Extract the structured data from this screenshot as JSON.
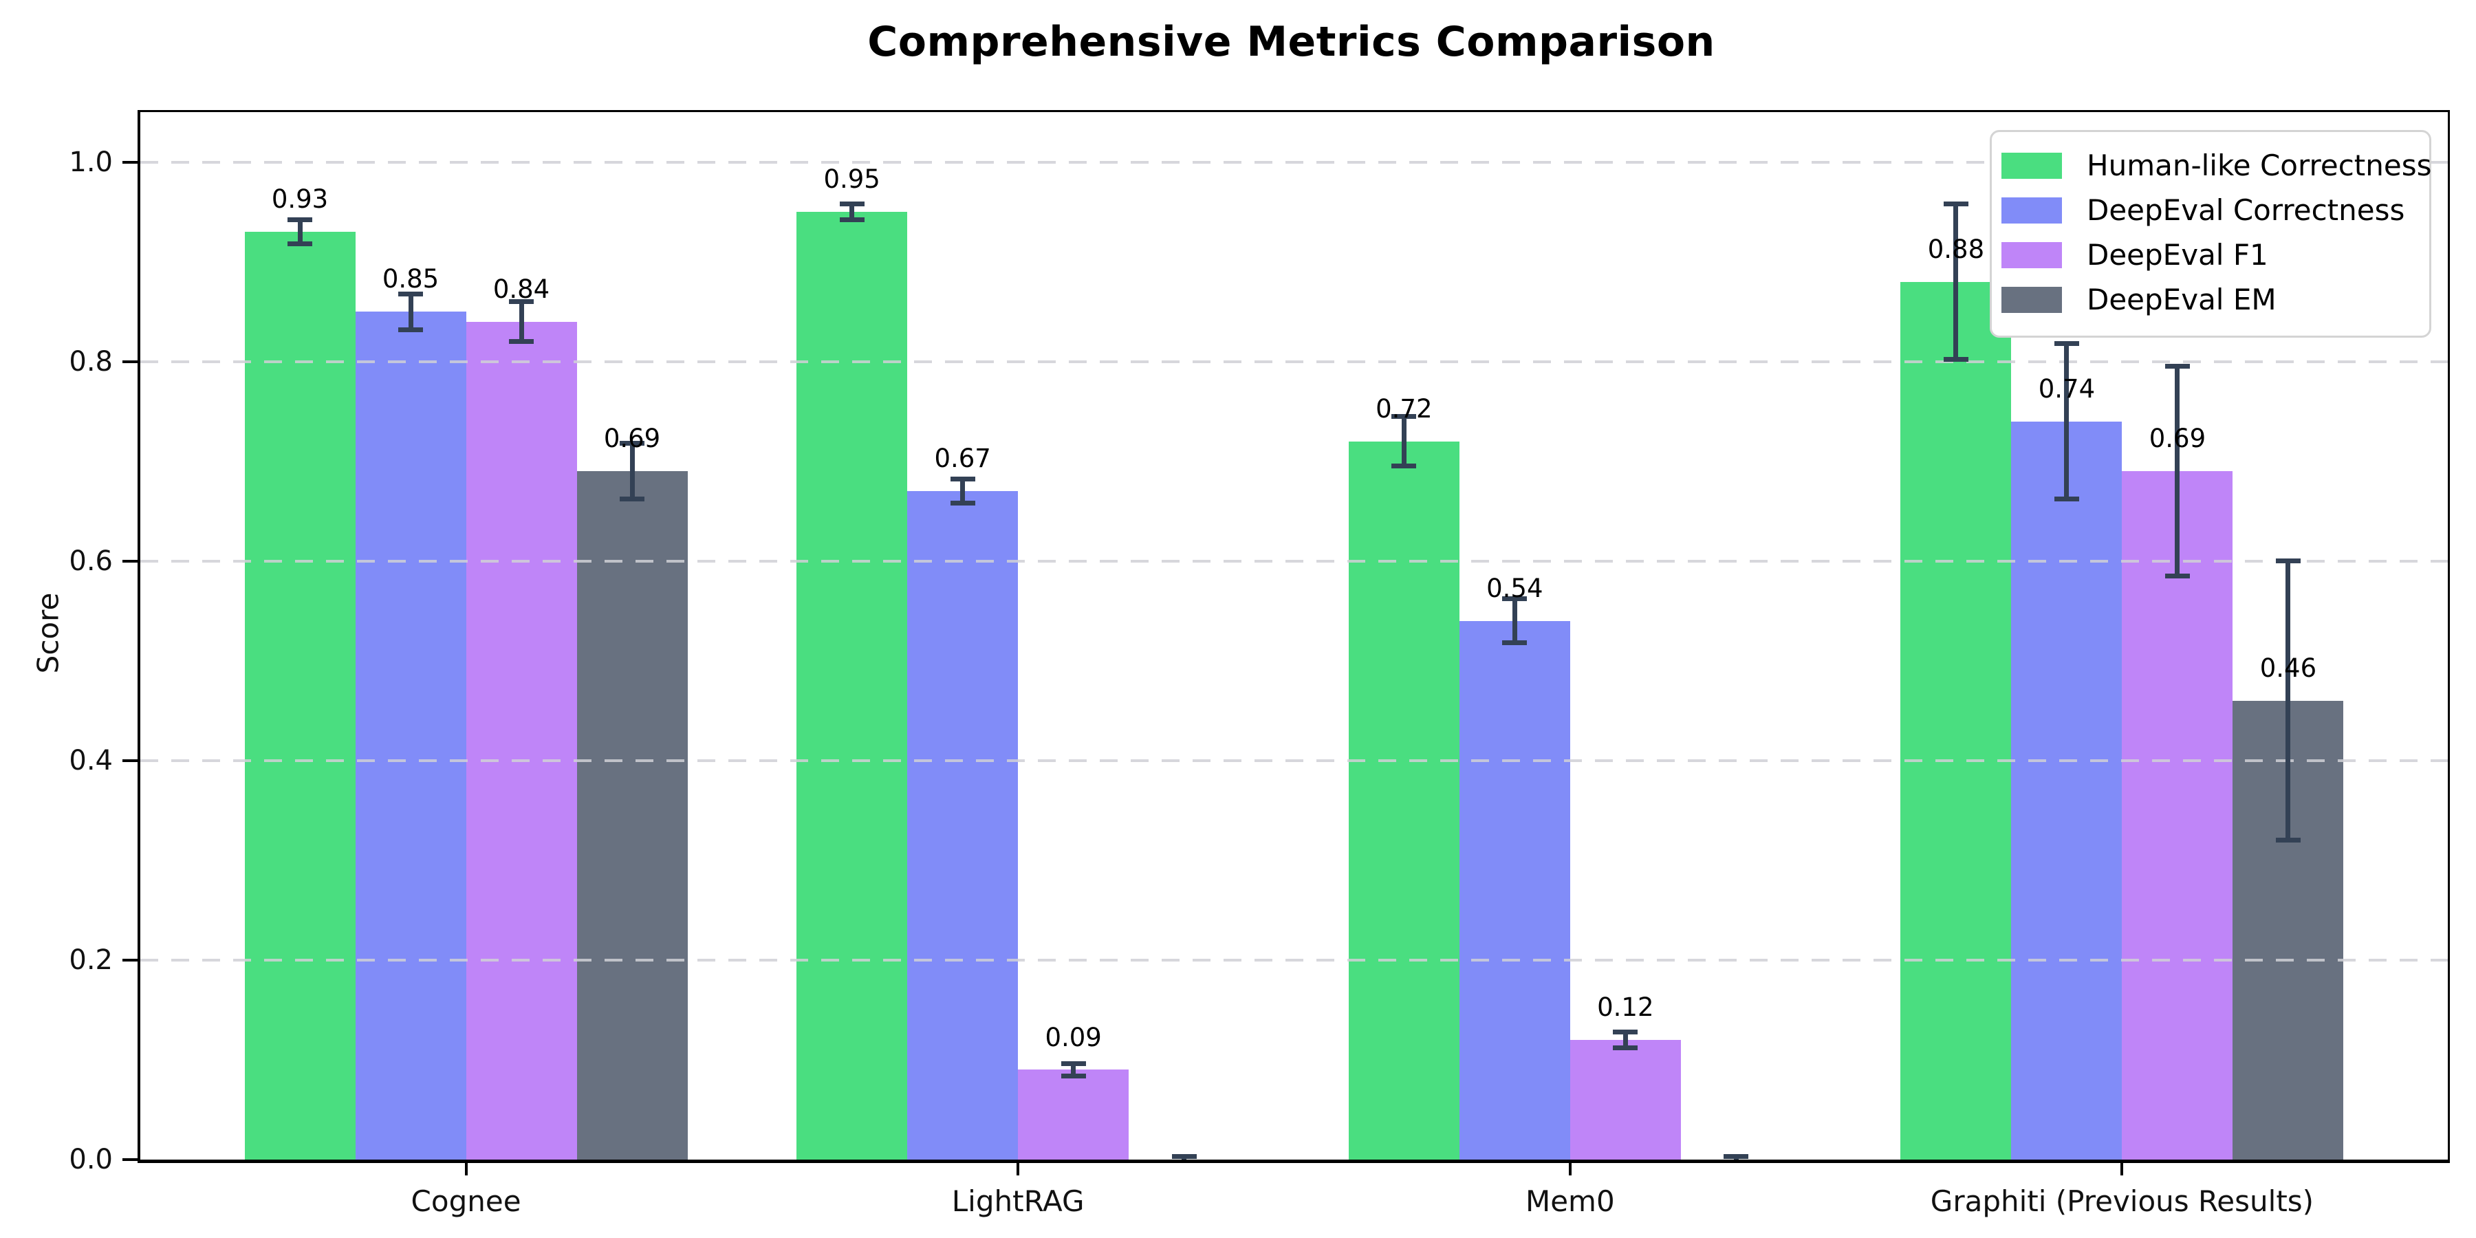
{
  "title": "Comprehensive Metrics Comparison",
  "chart_data": {
    "type": "bar",
    "categories": [
      "Cognee",
      "LightRAG",
      "Mem0",
      "Graphiti (Previous Results)"
    ],
    "series": [
      {
        "name": "Human-like Correctness",
        "color": "#4ade80",
        "values": [
          0.93,
          0.95,
          0.72,
          0.88
        ],
        "errors": [
          0.012,
          0.008,
          0.025,
          0.078
        ],
        "labels": [
          "0.93",
          "0.95",
          "0.72",
          "0.88"
        ]
      },
      {
        "name": "DeepEval Correctness",
        "color": "#818cf8",
        "values": [
          0.85,
          0.67,
          0.54,
          0.74
        ],
        "errors": [
          0.018,
          0.012,
          0.022,
          0.078
        ],
        "labels": [
          "0.85",
          "0.67",
          "0.54",
          "0.74"
        ]
      },
      {
        "name": "DeepEval F1",
        "color": "#bf85f8",
        "values": [
          0.84,
          0.09,
          0.12,
          0.69
        ],
        "errors": [
          0.02,
          0.006,
          0.008,
          0.105
        ],
        "labels": [
          "0.84",
          "0.09",
          "0.12",
          "0.69"
        ]
      },
      {
        "name": "DeepEval EM",
        "color": "#687180",
        "values": [
          0.69,
          0.0,
          0.0,
          0.46
        ],
        "errors": [
          0.028,
          0.003,
          0.003,
          0.14
        ],
        "labels": [
          "0.69",
          "",
          "",
          "0.46"
        ]
      }
    ],
    "ylabel": "Score",
    "yticks": [
      "0.0",
      "0.2",
      "0.4",
      "0.6",
      "0.8",
      "1.0"
    ],
    "ylim": [
      0,
      1.05
    ],
    "grid": "horizontal-dashed",
    "legend_position": "upper-right",
    "error_bar_color": "#334155",
    "background_color": "#ffffff"
  }
}
